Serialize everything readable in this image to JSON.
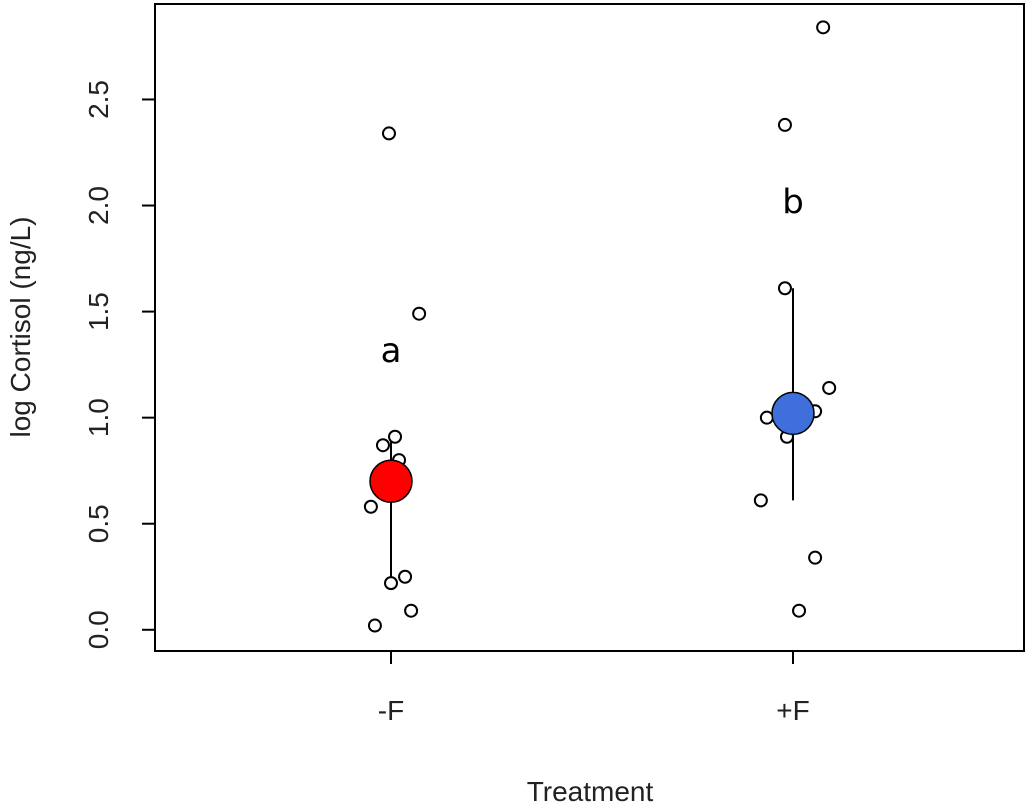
{
  "chart_data": {
    "type": "scatter",
    "title": "",
    "xlabel": "Treatment",
    "ylabel": "log Cortisol (ng/L)",
    "categories": [
      "-F",
      "+F"
    ],
    "ylim": [
      -0.1,
      2.95
    ],
    "y_ticks": [
      0.0,
      0.5,
      1.0,
      1.5,
      2.0,
      2.5
    ],
    "y_tick_labels": [
      "0.0",
      "0.5",
      "1.0",
      "1.5",
      "2.0",
      "2.5"
    ],
    "grid": false,
    "legend": "none",
    "groups": [
      {
        "category": "-F",
        "mean": 0.7,
        "interval": [
          0.22,
          0.9
        ],
        "mean_color": "#ff0000",
        "annotation": "a",
        "annotation_y": 1.32,
        "points": [
          {
            "jitter": -0.05,
            "y": 0.58
          },
          {
            "jitter": -0.02,
            "y": 0.87
          },
          {
            "jitter": 0.01,
            "y": 0.91
          },
          {
            "jitter": 0.02,
            "y": 0.8
          },
          {
            "jitter": -0.04,
            "y": 0.02
          },
          {
            "jitter": 0.0,
            "y": 0.22
          },
          {
            "jitter": 0.035,
            "y": 0.25
          },
          {
            "jitter": 0.05,
            "y": 0.09
          },
          {
            "jitter": -0.005,
            "y": 2.34
          },
          {
            "jitter": 0.07,
            "y": 1.49
          }
        ]
      },
      {
        "category": "+F",
        "mean": 1.02,
        "interval": [
          0.61,
          1.61
        ],
        "mean_color": "#3f6fdb",
        "annotation": "b",
        "annotation_y": 2.02,
        "points": [
          {
            "jitter": -0.02,
            "y": 1.61
          },
          {
            "jitter": -0.08,
            "y": 0.61
          },
          {
            "jitter": -0.065,
            "y": 1.0
          },
          {
            "jitter": -0.015,
            "y": 0.91
          },
          {
            "jitter": 0.055,
            "y": 1.03
          },
          {
            "jitter": 0.09,
            "y": 1.14
          },
          {
            "jitter": 0.055,
            "y": 0.34
          },
          {
            "jitter": 0.015,
            "y": 0.09
          },
          {
            "jitter": -0.02,
            "y": 2.38
          },
          {
            "jitter": 0.075,
            "y": 2.84
          }
        ]
      }
    ]
  }
}
